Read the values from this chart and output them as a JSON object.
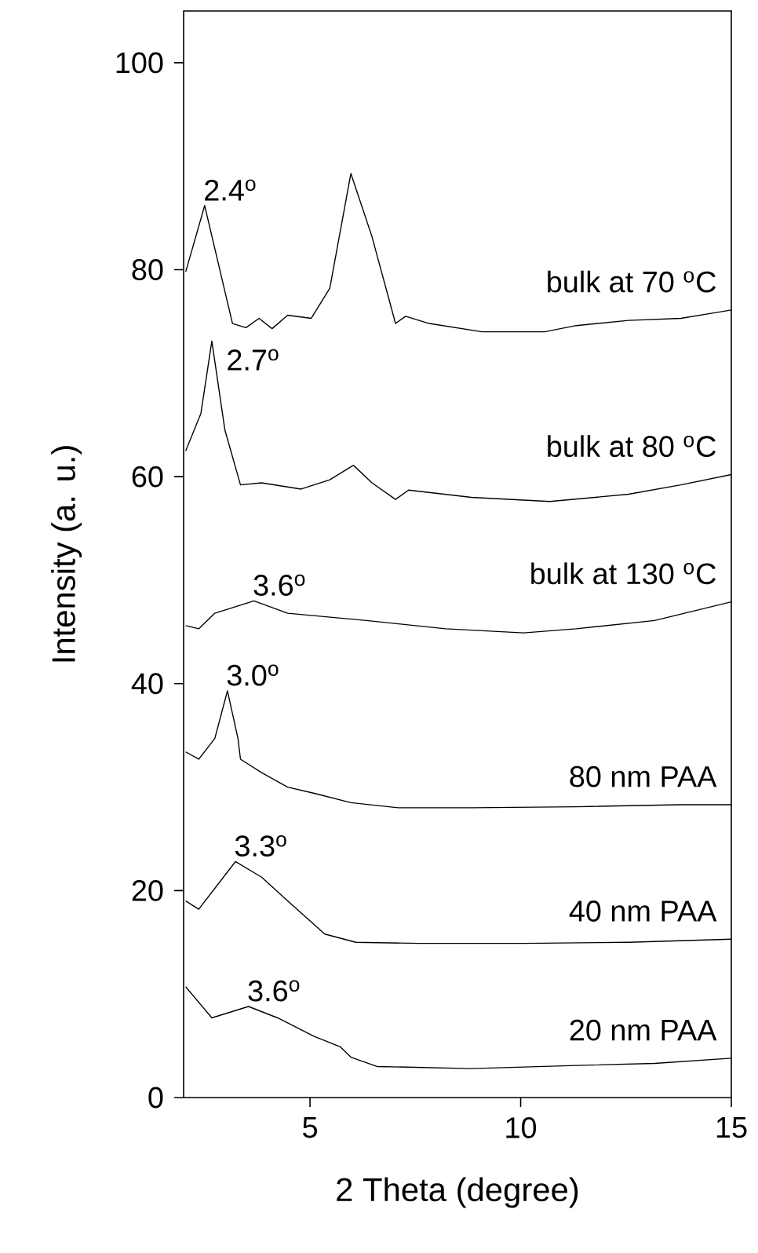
{
  "chart_data": {
    "type": "line",
    "xlabel": "2 Theta (degree)",
    "ylabel": "Intensity (a. u.)",
    "xlim": [
      2,
      15
    ],
    "ylim": [
      0,
      105
    ],
    "xticks": [
      5,
      10,
      15
    ],
    "yticks": [
      0,
      20,
      40,
      60,
      80,
      100
    ],
    "grid": false,
    "legend": false,
    "marker": "none",
    "line_style": "solid",
    "series": [
      {
        "name": "bulk at 70 $^{o}$C",
        "color": "#000000",
        "x": [
          2.05,
          2.5,
          3.16,
          3.48,
          3.79,
          4.1,
          4.47,
          5.03,
          5.47,
          5.97,
          6.47,
          7.03,
          7.27,
          7.83,
          9.08,
          10.57,
          11.32,
          12.56,
          13.8,
          14.55,
          15
        ],
        "values": [
          79.8,
          86.2,
          74.8,
          74.4,
          75.3,
          74.3,
          75.6,
          75.3,
          78.2,
          89.3,
          83.2,
          74.8,
          75.5,
          74.8,
          74.0,
          74.0,
          74.6,
          75.1,
          75.3,
          75.8,
          76.1
        ]
      },
      {
        "name": "bulk at 80 $^{o}$C",
        "color": "#000000",
        "x": [
          2.05,
          2.41,
          2.67,
          2.98,
          3.35,
          3.85,
          4.79,
          5.47,
          6.03,
          6.47,
          7.03,
          7.34,
          8.83,
          10.69,
          12.56,
          13.8,
          15
        ],
        "values": [
          62.5,
          66.1,
          73.1,
          64.5,
          59.2,
          59.4,
          58.8,
          59.7,
          61.1,
          59.4,
          57.8,
          58.7,
          58.0,
          57.6,
          58.3,
          59.2,
          60.2
        ]
      },
      {
        "name": "bulk at 130 $^{o}$C",
        "color": "#000000",
        "x": [
          2.05,
          2.36,
          2.74,
          3.67,
          4.47,
          6.34,
          8.21,
          10.07,
          11.32,
          13.18,
          15
        ],
        "values": [
          45.6,
          45.3,
          46.8,
          48.0,
          46.8,
          46.1,
          45.3,
          44.9,
          45.3,
          46.1,
          47.9
        ]
      },
      {
        "name": "80 nm PAA",
        "color": "#000000",
        "x": [
          2.05,
          2.36,
          2.74,
          3.04,
          3.29,
          3.35,
          3.85,
          4.47,
          5.1,
          5.97,
          7.09,
          8.83,
          11.32,
          13.8,
          15
        ],
        "values": [
          33.4,
          32.7,
          34.7,
          39.3,
          34.7,
          32.7,
          31.4,
          30.0,
          29.4,
          28.5,
          28.0,
          28.0,
          28.1,
          28.3,
          28.3
        ]
      },
      {
        "name": "40 nm PAA",
        "color": "#000000",
        "x": [
          2.05,
          2.36,
          3.23,
          3.85,
          4.47,
          5.35,
          6.09,
          7.59,
          10.07,
          12.56,
          15
        ],
        "values": [
          19.0,
          18.2,
          22.8,
          21.3,
          19.0,
          15.8,
          15.0,
          14.9,
          14.9,
          15.0,
          15.3
        ]
      },
      {
        "name": "20 nm PAA",
        "color": "#000000",
        "x": [
          2.05,
          2.67,
          3.54,
          4.23,
          5.1,
          5.72,
          5.97,
          6.59,
          8.83,
          11.32,
          13.18,
          15
        ],
        "values": [
          10.7,
          7.7,
          8.8,
          7.7,
          5.9,
          4.9,
          3.9,
          3.0,
          2.8,
          3.1,
          3.3,
          3.8
        ]
      }
    ],
    "annotations": [
      {
        "text": "2.4$^{o}$",
        "x": 2.5,
        "y": 86.2
      },
      {
        "text": "2.7$^{o}$",
        "x": 2.67,
        "y": 73.1
      },
      {
        "text": "3.6$^{o}$",
        "x": 3.67,
        "y": 48.0
      },
      {
        "text": "3.0$^{o}$",
        "x": 3.04,
        "y": 39.3
      },
      {
        "text": "3.3$^{o}$",
        "x": 3.23,
        "y": 22.8
      },
      {
        "text": "3.6$^{o}$",
        "x": 3.54,
        "y": 8.8
      }
    ]
  }
}
